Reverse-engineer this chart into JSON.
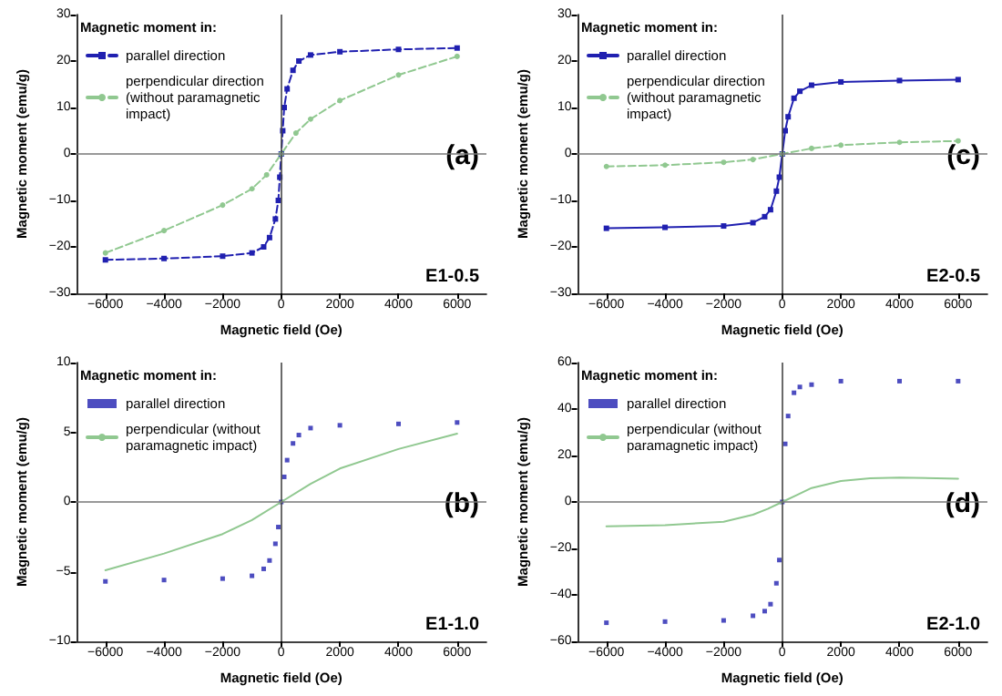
{
  "chart_data": [
    {
      "type": "line",
      "xlabel": "Magnetic field (Oe)",
      "ylabel": "Magnetic moment (emu/g)",
      "legend_title": "Magnetic moment in:",
      "legend": "top left",
      "annotations": [
        "(a)",
        "E1-0.5"
      ],
      "xlim": [
        -7000,
        7000
      ],
      "xticks": [
        -6000,
        -4000,
        -2000,
        0,
        2000,
        4000,
        6000
      ],
      "ylim": [
        -30,
        30
      ],
      "yticks": [
        -30,
        -20,
        -10,
        0,
        10,
        20,
        30
      ],
      "ref_lines": [
        {
          "axis": "x",
          "value": 0
        },
        {
          "axis": "y",
          "value": 0
        }
      ],
      "series": [
        {
          "name": "parallel direction",
          "color": "#2020b0",
          "marker": "square",
          "line_style": "dashed",
          "x": [
            -6000,
            -4000,
            -2000,
            -1000,
            -600,
            -400,
            -200,
            -100,
            -50,
            0,
            50,
            100,
            200,
            400,
            600,
            1000,
            2000,
            4000,
            6000
          ],
          "values": [
            -22.8,
            -22.5,
            -22,
            -21.3,
            -20,
            -18,
            -14,
            -10,
            -5,
            0,
            5,
            10,
            14,
            18,
            20,
            21.3,
            22,
            22.5,
            22.8
          ]
        },
        {
          "name": "perpendicular direction (without paramagnetic impact)",
          "color": "#90c890",
          "marker": "circle",
          "line_style": "dashed",
          "x": [
            -6000,
            -4000,
            -2000,
            -1000,
            -500,
            0,
            500,
            1000,
            2000,
            4000,
            6000
          ],
          "values": [
            -21.3,
            -16.5,
            -11,
            -7.5,
            -4.5,
            0,
            4.5,
            7.5,
            11.5,
            17,
            21
          ]
        }
      ]
    },
    {
      "type": "line",
      "xlabel": "Magnetic field (Oe)",
      "ylabel": "Magnetic moment (emu/g)",
      "legend_title": "Magnetic moment in:",
      "legend": "top left",
      "annotations": [
        "(c)",
        "E2-0.5"
      ],
      "xlim": [
        -7000,
        7000
      ],
      "xticks": [
        -6000,
        -4000,
        -2000,
        0,
        2000,
        4000,
        6000
      ],
      "ylim": [
        -30,
        30
      ],
      "yticks": [
        -30,
        -20,
        -10,
        0,
        10,
        20,
        30
      ],
      "ref_lines": [
        {
          "axis": "x",
          "value": 0
        },
        {
          "axis": "y",
          "value": 0
        }
      ],
      "series": [
        {
          "name": "parallel direction",
          "color": "#2020b0",
          "marker": "square",
          "line_style": "solid",
          "x": [
            -6000,
            -4000,
            -2000,
            -1000,
            -600,
            -400,
            -200,
            -100,
            0,
            100,
            200,
            400,
            600,
            1000,
            2000,
            4000,
            6000
          ],
          "values": [
            -16,
            -15.8,
            -15.5,
            -14.8,
            -13.5,
            -12,
            -8,
            -5,
            0,
            5,
            8,
            12,
            13.5,
            14.8,
            15.5,
            15.8,
            16
          ]
        },
        {
          "name": "perpendicular direction (without paramagnetic impact)",
          "color": "#90c890",
          "marker": "circle",
          "line_style": "dashed",
          "x": [
            -6000,
            -4000,
            -2000,
            -1000,
            0,
            1000,
            2000,
            4000,
            6000
          ],
          "values": [
            -2.7,
            -2.4,
            -1.8,
            -1.2,
            0,
            1.2,
            1.9,
            2.5,
            2.8
          ]
        }
      ]
    },
    {
      "type": "line",
      "xlabel": "Magnetic field (Oe)",
      "ylabel": "Magnetic moment (emu/g)",
      "legend_title": "Magnetic moment in:",
      "legend": "top left",
      "annotations": [
        "(b)",
        "E1-1.0"
      ],
      "xlim": [
        -7000,
        7000
      ],
      "xticks": [
        -6000,
        -4000,
        -2000,
        0,
        2000,
        4000,
        6000
      ],
      "ylim": [
        -10,
        10
      ],
      "yticks": [
        -10,
        -5,
        0,
        5,
        10
      ],
      "ref_lines": [
        {
          "axis": "x",
          "value": 0
        },
        {
          "axis": "y",
          "value": 0
        }
      ],
      "series": [
        {
          "name": "parallel direction",
          "type": "scatter",
          "color": "#2020b0",
          "marker": "square",
          "x": [
            -6000,
            -4000,
            -2000,
            -1000,
            -600,
            -400,
            -200,
            -100,
            0,
            100,
            200,
            400,
            600,
            1000,
            2000,
            4000,
            6000
          ],
          "values": [
            -5.7,
            -5.6,
            -5.5,
            -5.3,
            -4.8,
            -4.2,
            -3,
            -1.8,
            0,
            1.8,
            3,
            4.2,
            4.8,
            5.3,
            5.5,
            5.6,
            5.7
          ]
        },
        {
          "name": "perpendicular (without paramagnetic impact)",
          "color": "#90c890",
          "marker": "none",
          "line_style": "solid",
          "x": [
            -6000,
            -4000,
            -2000,
            -1000,
            0,
            1000,
            2000,
            4000,
            6000
          ],
          "values": [
            -4.9,
            -3.7,
            -2.3,
            -1.3,
            0,
            1.3,
            2.4,
            3.8,
            4.9
          ]
        }
      ]
    },
    {
      "type": "line",
      "xlabel": "Magnetic field (Oe)",
      "ylabel": "Magnetic moment (emu/g)",
      "legend_title": "Magnetic moment in:",
      "legend": "top left",
      "annotations": [
        "(d)",
        "E2-1.0"
      ],
      "xlim": [
        -7000,
        7000
      ],
      "xticks": [
        -6000,
        -4000,
        -2000,
        0,
        2000,
        4000,
        6000
      ],
      "ylim": [
        -60,
        60
      ],
      "yticks": [
        -60,
        -40,
        -20,
        0,
        20,
        40,
        60
      ],
      "ref_lines": [
        {
          "axis": "x",
          "value": 0
        },
        {
          "axis": "y",
          "value": 0
        }
      ],
      "series": [
        {
          "name": "parallel direction",
          "type": "scatter",
          "color": "#2020b0",
          "marker": "square",
          "x": [
            -6000,
            -4000,
            -2000,
            -1000,
            -600,
            -400,
            -200,
            -100,
            0,
            100,
            200,
            400,
            600,
            1000,
            2000,
            4000,
            6000
          ],
          "values": [
            -52,
            -51.5,
            -51,
            -49,
            -47,
            -44,
            -35,
            -25,
            0,
            25,
            37,
            47,
            49.5,
            50.5,
            52,
            52,
            52
          ]
        },
        {
          "name": "perpendicular (without paramagnetic impact)",
          "color": "#90c890",
          "marker": "none",
          "line_style": "solid",
          "x": [
            -6000,
            -4000,
            -2000,
            -1000,
            -500,
            0,
            500,
            1000,
            2000,
            3000,
            4000,
            6000
          ],
          "values": [
            -10.5,
            -10,
            -8.5,
            -5.5,
            -3,
            0,
            3,
            6,
            9,
            10.2,
            10.5,
            10
          ]
        }
      ]
    }
  ]
}
